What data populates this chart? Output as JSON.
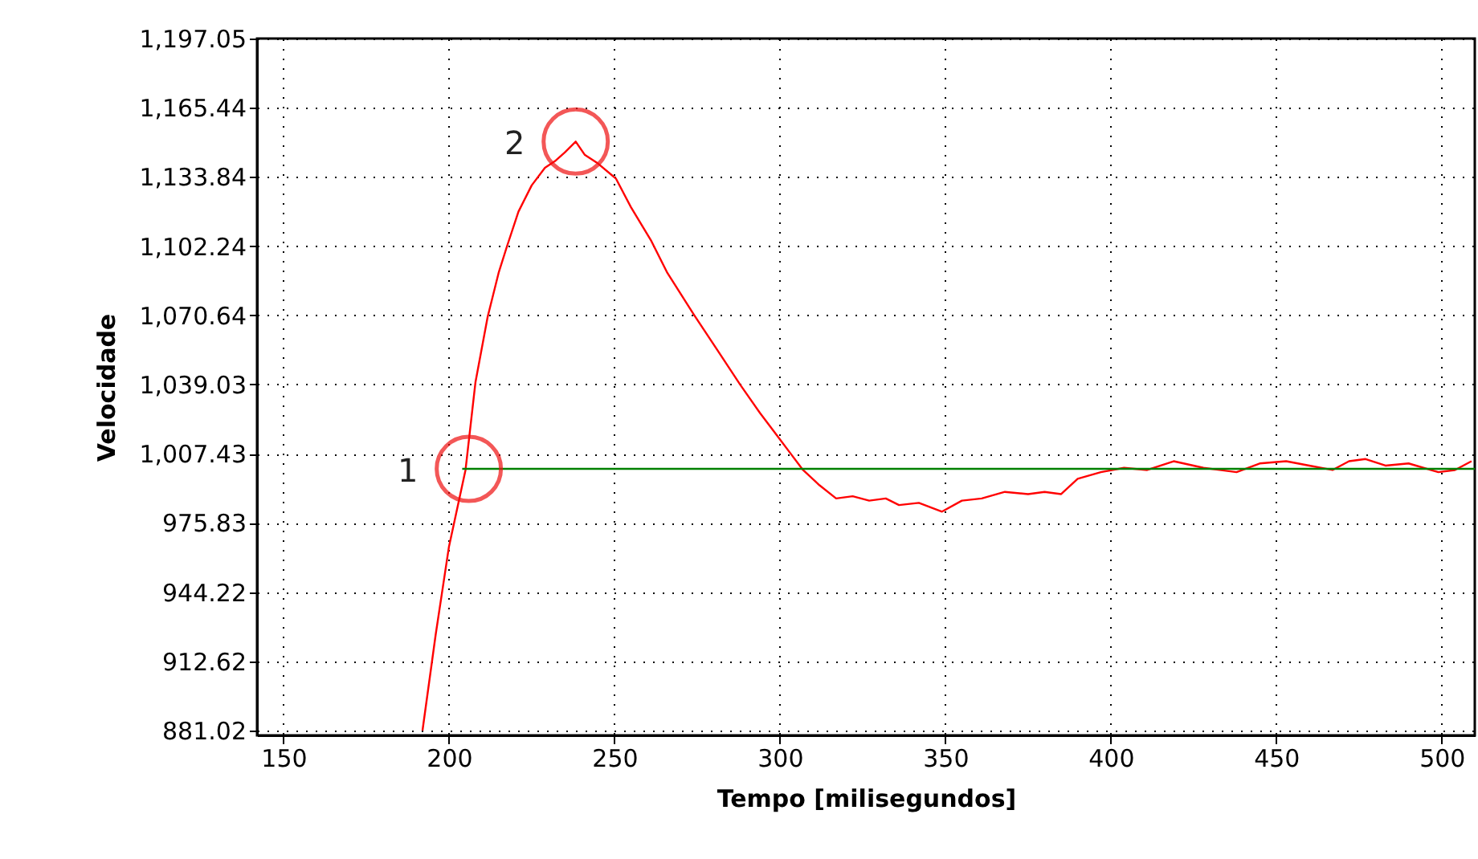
{
  "chart_data": {
    "type": "line",
    "xlabel": "Tempo [milisegundos]",
    "ylabel": "Velocidade",
    "xlim": [
      142,
      510
    ],
    "ylim": [
      878.8,
      1197.05
    ],
    "xticks": [
      150,
      200,
      250,
      300,
      350,
      400,
      450,
      500
    ],
    "yticks": [
      881.02,
      912.62,
      944.22,
      975.83,
      {
        "value": 1007.43,
        "label": "1,007.43"
      },
      {
        "value": 1039.03,
        "label": "1,039.03"
      },
      {
        "value": 1070.64,
        "label": "1,070.64"
      },
      {
        "value": 1102.24,
        "label": "1,102.24"
      },
      {
        "value": 1133.84,
        "label": "1,133.84"
      },
      {
        "value": 1165.44,
        "label": "1,165.44"
      },
      {
        "value": 1197.05,
        "label": "1,197.05"
      }
    ],
    "grid": true,
    "line_style": "solid",
    "marker": "none",
    "series": [
      {
        "color": "#ff0000",
        "x": [
          192,
          196,
          200,
          205,
          208,
          211.7,
          215,
          217.5,
          221,
          225,
          229,
          232,
          235,
          238.3,
          241,
          245,
          250.5,
          255,
          261,
          266,
          274,
          281,
          288,
          294,
          299,
          303,
          307,
          312,
          317,
          322,
          327,
          332,
          336,
          342,
          349,
          355,
          361,
          368,
          375,
          380,
          385,
          390,
          397,
          404,
          411,
          419,
          428,
          438,
          445,
          453,
          460,
          467,
          472,
          477,
          483,
          490,
          499,
          504,
          509
        ],
        "values": [
          881,
          925,
          965,
          1000,
          1040,
          1070,
          1090,
          1102,
          1118,
          1130,
          1138,
          1141,
          1145,
          1150,
          1144,
          1140,
          1133,
          1120,
          1105,
          1090,
          1071,
          1055,
          1039,
          1026,
          1016,
          1008,
          1000,
          993,
          987,
          988,
          986,
          987,
          984,
          985,
          981,
          986,
          987,
          990,
          989,
          990,
          989,
          996,
          999,
          1001,
          1000,
          1004,
          1001,
          999,
          1003,
          1004,
          1002,
          1000,
          1004,
          1005,
          1002,
          1003,
          999,
          1000,
          1004
        ]
      },
      {
        "color": "#008000",
        "x": [
          204,
          510
        ],
        "values": [
          1000.5,
          1000.5
        ]
      }
    ],
    "annotations": [
      {
        "text": "1",
        "x": 206,
        "y": 1000.5
      },
      {
        "text": "2",
        "x": 238.3,
        "y": 1150
      }
    ]
  }
}
